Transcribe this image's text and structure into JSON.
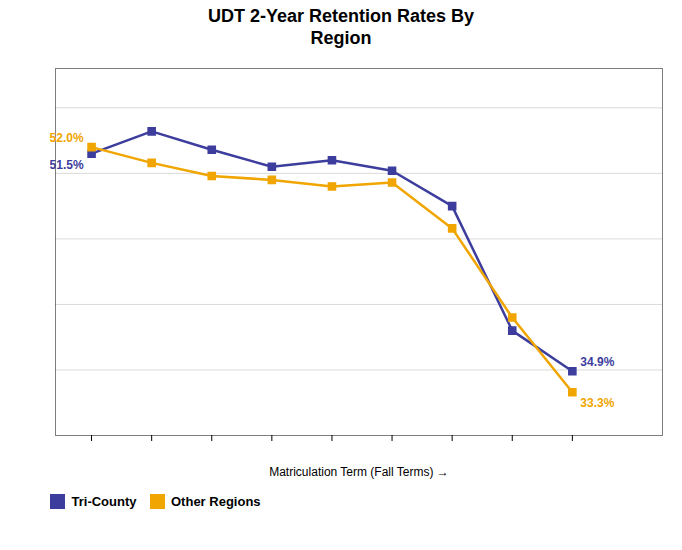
{
  "chart_data": {
    "type": "line",
    "title": "UDT 2-Year Retention Rates By\nRegion",
    "xlabel": "Matriculation Term (Fall Terms)",
    "x": [
      0,
      1,
      2,
      3,
      4,
      5,
      6,
      7,
      8
    ],
    "series": [
      {
        "name": "Tri-County",
        "color": "#3D3D9E",
        "marker": "square",
        "line_style": "solid",
        "values": [
          51.5,
          53.2,
          51.8,
          50.5,
          51.0,
          50.2,
          47.5,
          38.0,
          34.9
        ]
      },
      {
        "name": "Other Regions",
        "color": "#F0A500",
        "marker": "square",
        "line_style": "solid",
        "values": [
          52.0,
          50.8,
          49.8,
          49.5,
          49.0,
          49.3,
          45.8,
          39.0,
          33.3
        ]
      }
    ],
    "xlim": [
      -0.6,
      9.5
    ],
    "xticks": [
      0,
      1,
      2,
      3,
      4,
      5,
      6,
      7,
      8
    ],
    "ylim": [
      30,
      58
    ],
    "yticks": [
      35,
      40,
      45,
      50,
      55
    ],
    "grid": true,
    "legend": "lower left",
    "tick_labels": false,
    "annotations": [
      {
        "text": "52.0%",
        "x": 0,
        "y": 52.0,
        "color": "#F0A500"
      },
      {
        "text": "51.5%",
        "x": 0,
        "y": 51.5,
        "color": "#3D3D9E"
      },
      {
        "text": "34.9%",
        "x": 8,
        "y": 34.9,
        "color": "#3D3D9E"
      },
      {
        "text": "33.3%",
        "x": 8,
        "y": 33.3,
        "color": "#F0A500"
      }
    ]
  }
}
